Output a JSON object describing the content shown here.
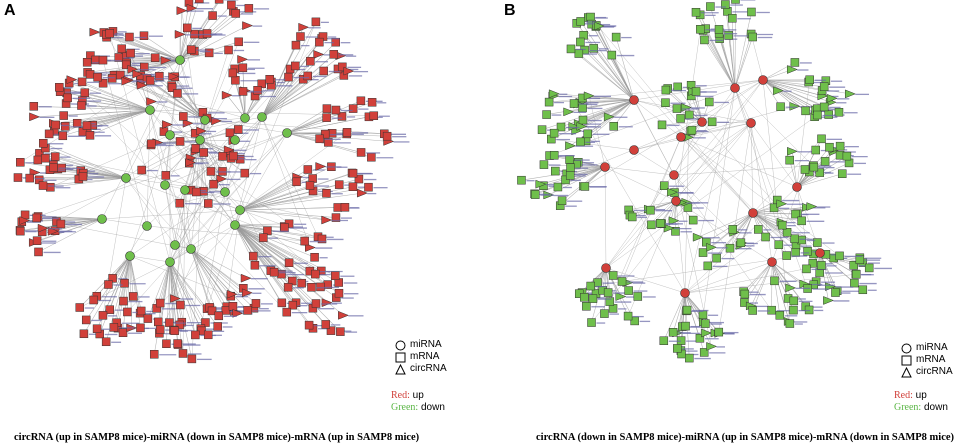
{
  "panels": [
    {
      "letter": "A",
      "caption": "circRNA (up in SAMP8 mice)-miRNA (down in SAMP8 mice)-mRNA (up in SAMP8 mice)",
      "mirna_color": "#6fbf4b",
      "target_color": "#d1403a",
      "legend": {
        "shapes": [
          {
            "shape": "circle",
            "label": "miRNA"
          },
          {
            "shape": "square",
            "label": "mRNA"
          },
          {
            "shape": "triangle",
            "label": "circRNA"
          }
        ],
        "colors": [
          {
            "key": "Red:",
            "value": "up",
            "color": "#d1403a"
          },
          {
            "key": "Green:",
            "value": "down",
            "color": "#5bb646"
          }
        ]
      }
    },
    {
      "letter": "B",
      "caption": "circRNA (down in SAMP8 mice)-miRNA (up in SAMP8 mice)-mRNA (down in SAMP8 mice)",
      "mirna_color": "#d1403a",
      "target_color": "#6fbf4b",
      "legend": {
        "shapes": [
          {
            "shape": "circle",
            "label": "miRNA"
          },
          {
            "shape": "square",
            "label": "mRNA"
          },
          {
            "shape": "triangle",
            "label": "circRNA"
          }
        ],
        "colors": [
          {
            "key": "Red:",
            "value": "up",
            "color": "#d1403a"
          },
          {
            "key": "Green:",
            "value": "down",
            "color": "#5bb646"
          }
        ]
      }
    }
  ]
}
